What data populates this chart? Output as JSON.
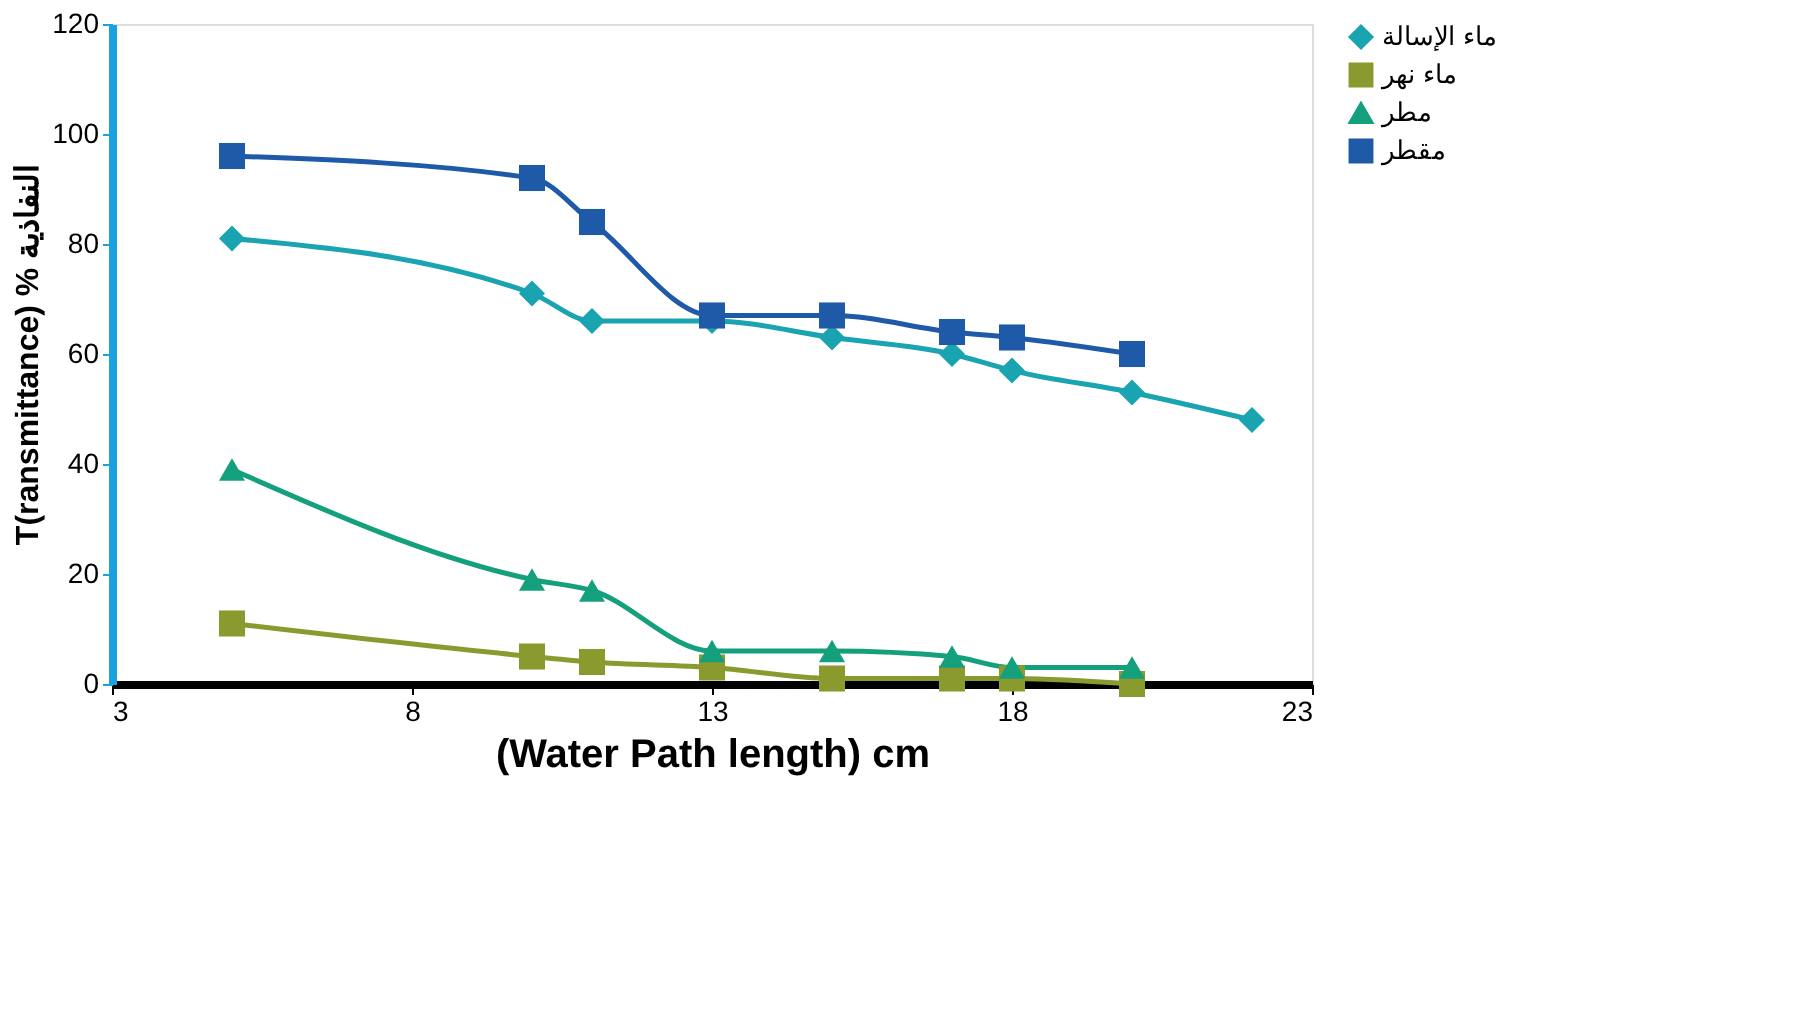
{
  "chart_data": {
    "type": "line",
    "xlabel": "(Water Path length)   cm",
    "ylabel": "T(ransmittance) % النفاذية",
    "x": [
      5,
      10,
      11,
      13,
      15,
      17,
      18,
      20,
      22
    ],
    "series": [
      {
        "name": "ماء الإسالة",
        "color": "#1aa3b0",
        "marker": "diamond",
        "values": [
          81,
          71,
          66,
          66,
          63,
          60,
          57,
          53,
          48
        ]
      },
      {
        "name": "ماء نهر",
        "color": "#8a9a2e",
        "marker": "square",
        "values": [
          11,
          5,
          4,
          3,
          1,
          1,
          1,
          0,
          null
        ]
      },
      {
        "name": "مطر",
        "color": "#14a07c",
        "marker": "triangle",
        "values": [
          39,
          19,
          17,
          6,
          6,
          5,
          3,
          3,
          null
        ]
      },
      {
        "name": "مقطر",
        "color": "#1f5aa8",
        "marker": "square",
        "values": [
          96,
          92,
          84,
          67,
          67,
          64,
          63,
          60,
          null
        ]
      }
    ],
    "xlim": [
      3,
      23
    ],
    "xticks": [
      3,
      8,
      13,
      18,
      23
    ],
    "ylim": [
      0,
      120
    ],
    "yticks": [
      0,
      20,
      40,
      60,
      80,
      100,
      120
    ],
    "grid": false,
    "legend": "top right",
    "line_style": "solid"
  }
}
